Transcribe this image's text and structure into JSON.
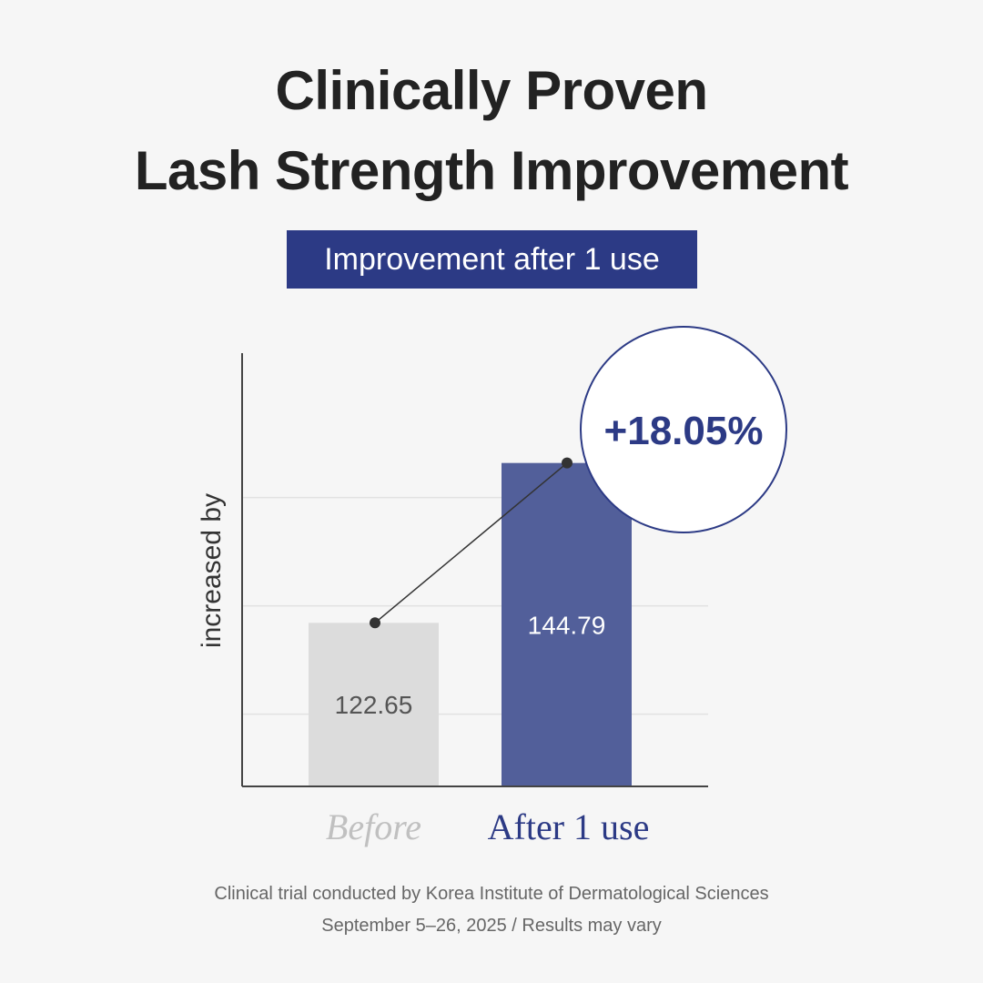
{
  "header": {
    "title_line_1": "Clinically Proven",
    "title_line_2": "Lash Strength Improvement",
    "subtitle": "Improvement after 1 use"
  },
  "chart_data": {
    "type": "bar",
    "categories": [
      "Before",
      "After 1 use"
    ],
    "values": [
      122.65,
      144.79
    ],
    "value_labels": [
      "122.65",
      "144.79"
    ],
    "ylabel": "increased by",
    "ylim": [
      100,
      160
    ],
    "grid": true,
    "annotation": "+18.05%",
    "colors": {
      "before_bar": "#dcdcdc",
      "after_bar": "#525f9a",
      "before_label": "#c0c0c0",
      "after_label": "#2c3a85",
      "accent": "#2c3a85"
    }
  },
  "footer": {
    "line_1": "Clinical trial conducted by Korea Institute of Dermatological Sciences",
    "line_2": "September 5–26, 2025 / Results may vary"
  }
}
